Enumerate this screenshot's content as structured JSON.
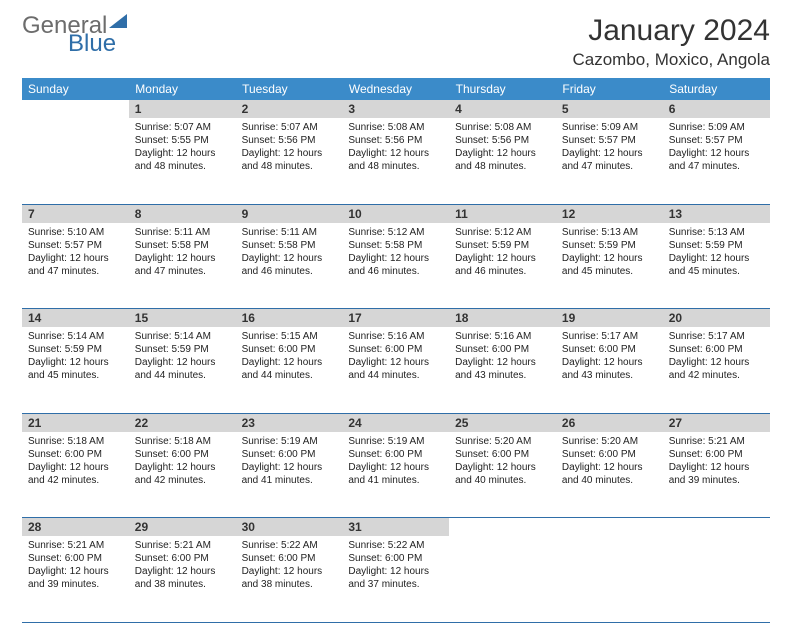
{
  "logo": {
    "line1": "General",
    "line2": "Blue"
  },
  "title": "January 2024",
  "location": "Cazombo, Moxico, Angola",
  "colors": {
    "header_bg": "#3b8bc9",
    "daynum_bg": "#d6d6d6",
    "rule": "#2f6ea8",
    "logo_gray": "#6c6c6c",
    "logo_blue": "#2f6ea8"
  },
  "weekdays": [
    "Sunday",
    "Monday",
    "Tuesday",
    "Wednesday",
    "Thursday",
    "Friday",
    "Saturday"
  ],
  "weeks": [
    {
      "nums": [
        "",
        "1",
        "2",
        "3",
        "4",
        "5",
        "6"
      ],
      "cells": [
        null,
        {
          "sunrise": "5:07 AM",
          "sunset": "5:55 PM",
          "day": "12 hours and 48 minutes."
        },
        {
          "sunrise": "5:07 AM",
          "sunset": "5:56 PM",
          "day": "12 hours and 48 minutes."
        },
        {
          "sunrise": "5:08 AM",
          "sunset": "5:56 PM",
          "day": "12 hours and 48 minutes."
        },
        {
          "sunrise": "5:08 AM",
          "sunset": "5:56 PM",
          "day": "12 hours and 48 minutes."
        },
        {
          "sunrise": "5:09 AM",
          "sunset": "5:57 PM",
          "day": "12 hours and 47 minutes."
        },
        {
          "sunrise": "5:09 AM",
          "sunset": "5:57 PM",
          "day": "12 hours and 47 minutes."
        }
      ]
    },
    {
      "nums": [
        "7",
        "8",
        "9",
        "10",
        "11",
        "12",
        "13"
      ],
      "cells": [
        {
          "sunrise": "5:10 AM",
          "sunset": "5:57 PM",
          "day": "12 hours and 47 minutes."
        },
        {
          "sunrise": "5:11 AM",
          "sunset": "5:58 PM",
          "day": "12 hours and 47 minutes."
        },
        {
          "sunrise": "5:11 AM",
          "sunset": "5:58 PM",
          "day": "12 hours and 46 minutes."
        },
        {
          "sunrise": "5:12 AM",
          "sunset": "5:58 PM",
          "day": "12 hours and 46 minutes."
        },
        {
          "sunrise": "5:12 AM",
          "sunset": "5:59 PM",
          "day": "12 hours and 46 minutes."
        },
        {
          "sunrise": "5:13 AM",
          "sunset": "5:59 PM",
          "day": "12 hours and 45 minutes."
        },
        {
          "sunrise": "5:13 AM",
          "sunset": "5:59 PM",
          "day": "12 hours and 45 minutes."
        }
      ]
    },
    {
      "nums": [
        "14",
        "15",
        "16",
        "17",
        "18",
        "19",
        "20"
      ],
      "cells": [
        {
          "sunrise": "5:14 AM",
          "sunset": "5:59 PM",
          "day": "12 hours and 45 minutes."
        },
        {
          "sunrise": "5:14 AM",
          "sunset": "5:59 PM",
          "day": "12 hours and 44 minutes."
        },
        {
          "sunrise": "5:15 AM",
          "sunset": "6:00 PM",
          "day": "12 hours and 44 minutes."
        },
        {
          "sunrise": "5:16 AM",
          "sunset": "6:00 PM",
          "day": "12 hours and 44 minutes."
        },
        {
          "sunrise": "5:16 AM",
          "sunset": "6:00 PM",
          "day": "12 hours and 43 minutes."
        },
        {
          "sunrise": "5:17 AM",
          "sunset": "6:00 PM",
          "day": "12 hours and 43 minutes."
        },
        {
          "sunrise": "5:17 AM",
          "sunset": "6:00 PM",
          "day": "12 hours and 42 minutes."
        }
      ]
    },
    {
      "nums": [
        "21",
        "22",
        "23",
        "24",
        "25",
        "26",
        "27"
      ],
      "cells": [
        {
          "sunrise": "5:18 AM",
          "sunset": "6:00 PM",
          "day": "12 hours and 42 minutes."
        },
        {
          "sunrise": "5:18 AM",
          "sunset": "6:00 PM",
          "day": "12 hours and 42 minutes."
        },
        {
          "sunrise": "5:19 AM",
          "sunset": "6:00 PM",
          "day": "12 hours and 41 minutes."
        },
        {
          "sunrise": "5:19 AM",
          "sunset": "6:00 PM",
          "day": "12 hours and 41 minutes."
        },
        {
          "sunrise": "5:20 AM",
          "sunset": "6:00 PM",
          "day": "12 hours and 40 minutes."
        },
        {
          "sunrise": "5:20 AM",
          "sunset": "6:00 PM",
          "day": "12 hours and 40 minutes."
        },
        {
          "sunrise": "5:21 AM",
          "sunset": "6:00 PM",
          "day": "12 hours and 39 minutes."
        }
      ]
    },
    {
      "nums": [
        "28",
        "29",
        "30",
        "31",
        "",
        "",
        ""
      ],
      "cells": [
        {
          "sunrise": "5:21 AM",
          "sunset": "6:00 PM",
          "day": "12 hours and 39 minutes."
        },
        {
          "sunrise": "5:21 AM",
          "sunset": "6:00 PM",
          "day": "12 hours and 38 minutes."
        },
        {
          "sunrise": "5:22 AM",
          "sunset": "6:00 PM",
          "day": "12 hours and 38 minutes."
        },
        {
          "sunrise": "5:22 AM",
          "sunset": "6:00 PM",
          "day": "12 hours and 37 minutes."
        },
        null,
        null,
        null
      ]
    }
  ],
  "labels": {
    "sunrise": "Sunrise:",
    "sunset": "Sunset:",
    "daylight": "Daylight:"
  }
}
